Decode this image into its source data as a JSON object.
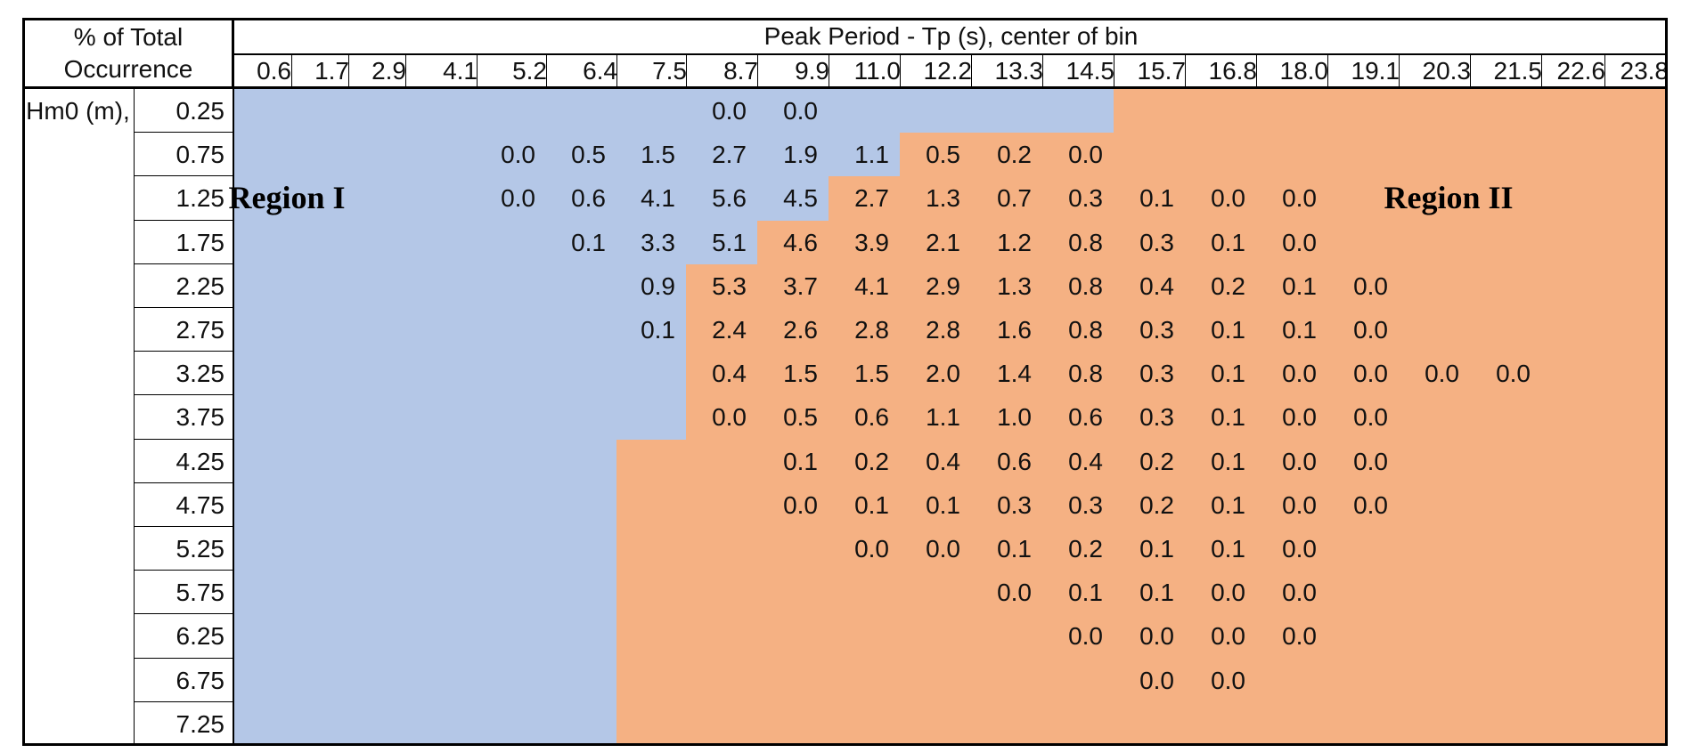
{
  "table": {
    "corner_line1": "% of Total",
    "corner_line2": "Occurrence",
    "top_header": "Peak Period - Tp (s), center of bin",
    "row_axis_label": "Hm0 (m),",
    "region1_label": "Region I",
    "region2_label": "Region II"
  },
  "colors": {
    "region1_fill": "#B4C7E7",
    "region2_fill": "#F5B183",
    "border": "#000000",
    "background": "#FFFFFF"
  },
  "chart_data": {
    "type": "heatmap",
    "title": "Peak Period - Tp (s), center of bin",
    "value_unit": "% of Total Occurrence",
    "xlabel": "Peak Period - Tp (s), center of bin",
    "ylabel": "Hm0 (m)",
    "columns_tp_s": [
      "0.6",
      "1.7",
      "2.9",
      "4.1",
      "5.2",
      "6.4",
      "7.5",
      "8.7",
      "9.9",
      "11.0",
      "12.2",
      "13.3",
      "14.5",
      "15.7",
      "16.8",
      "18.0",
      "19.1",
      "20.3",
      "21.5",
      "22.6",
      "23.8"
    ],
    "rows_hm0_m": [
      "0.25",
      "0.75",
      "1.25",
      "1.75",
      "2.25",
      "2.75",
      "3.25",
      "3.75",
      "4.25",
      "4.75",
      "5.25",
      "5.75",
      "6.25",
      "6.75",
      "7.25"
    ],
    "matrix": [
      [
        "",
        "",
        "",
        "",
        "",
        "",
        "",
        "0.0",
        "0.0",
        "",
        "",
        "",
        "",
        "",
        "",
        "",
        "",
        "",
        "",
        "",
        ""
      ],
      [
        "",
        "",
        "",
        "",
        "0.0",
        "0.5",
        "1.5",
        "2.7",
        "1.9",
        "1.1",
        "0.5",
        "0.2",
        "0.0",
        "",
        "",
        "",
        "",
        "",
        "",
        "",
        ""
      ],
      [
        "",
        "",
        "",
        "",
        "0.0",
        "0.6",
        "4.1",
        "5.6",
        "4.5",
        "2.7",
        "1.3",
        "0.7",
        "0.3",
        "0.1",
        "0.0",
        "0.0",
        "",
        "",
        "",
        "",
        ""
      ],
      [
        "",
        "",
        "",
        "",
        "",
        "0.1",
        "3.3",
        "5.1",
        "4.6",
        "3.9",
        "2.1",
        "1.2",
        "0.8",
        "0.3",
        "0.1",
        "0.0",
        "",
        "",
        "",
        "",
        ""
      ],
      [
        "",
        "",
        "",
        "",
        "",
        "",
        "0.9",
        "5.3",
        "3.7",
        "4.1",
        "2.9",
        "1.3",
        "0.8",
        "0.4",
        "0.2",
        "0.1",
        "0.0",
        "",
        "",
        "",
        ""
      ],
      [
        "",
        "",
        "",
        "",
        "",
        "",
        "0.1",
        "2.4",
        "2.6",
        "2.8",
        "2.8",
        "1.6",
        "0.8",
        "0.3",
        "0.1",
        "0.1",
        "0.0",
        "",
        "",
        "",
        ""
      ],
      [
        "",
        "",
        "",
        "",
        "",
        "",
        "",
        "0.4",
        "1.5",
        "1.5",
        "2.0",
        "1.4",
        "0.8",
        "0.3",
        "0.1",
        "0.0",
        "0.0",
        "0.0",
        "0.0",
        "",
        ""
      ],
      [
        "",
        "",
        "",
        "",
        "",
        "",
        "",
        "0.0",
        "0.5",
        "0.6",
        "1.1",
        "1.0",
        "0.6",
        "0.3",
        "0.1",
        "0.0",
        "0.0",
        "",
        "",
        "",
        ""
      ],
      [
        "",
        "",
        "",
        "",
        "",
        "",
        "",
        "",
        "0.1",
        "0.2",
        "0.4",
        "0.6",
        "0.4",
        "0.2",
        "0.1",
        "0.0",
        "0.0",
        "",
        "",
        "",
        ""
      ],
      [
        "",
        "",
        "",
        "",
        "",
        "",
        "",
        "",
        "0.0",
        "0.1",
        "0.1",
        "0.3",
        "0.3",
        "0.2",
        "0.1",
        "0.0",
        "0.0",
        "",
        "",
        "",
        ""
      ],
      [
        "",
        "",
        "",
        "",
        "",
        "",
        "",
        "",
        "",
        "0.0",
        "0.0",
        "0.1",
        "0.2",
        "0.1",
        "0.1",
        "0.0",
        "",
        "",
        "",
        "",
        ""
      ],
      [
        "",
        "",
        "",
        "",
        "",
        "",
        "",
        "",
        "",
        "",
        "",
        "0.0",
        "0.1",
        "0.1",
        "0.0",
        "0.0",
        "",
        "",
        "",
        "",
        ""
      ],
      [
        "",
        "",
        "",
        "",
        "",
        "",
        "",
        "",
        "",
        "",
        "",
        "",
        "0.0",
        "0.0",
        "0.0",
        "0.0",
        "",
        "",
        "",
        "",
        ""
      ],
      [
        "",
        "",
        "",
        "",
        "",
        "",
        "",
        "",
        "",
        "",
        "",
        "",
        "",
        "0.0",
        "0.0",
        "",
        "",
        "",
        "",
        "",
        ""
      ],
      [
        "",
        "",
        "",
        "",
        "",
        "",
        "",
        "",
        "",
        "",
        "",
        "",
        "",
        "",
        "",
        "",
        "",
        "",
        "",
        "",
        ""
      ]
    ],
    "region1": {
      "label": "Region I",
      "color": "#B4C7E7",
      "description": "blue shaded area"
    },
    "region2": {
      "label": "Region II",
      "color": "#F5B183",
      "description": "orange shaded area"
    },
    "region2_start_col_index_per_row": [
      13,
      10,
      9,
      8,
      7,
      7,
      7,
      7,
      6,
      6,
      6,
      6,
      6,
      6,
      6
    ],
    "legend_position": "in-plot labels",
    "grid": false
  }
}
